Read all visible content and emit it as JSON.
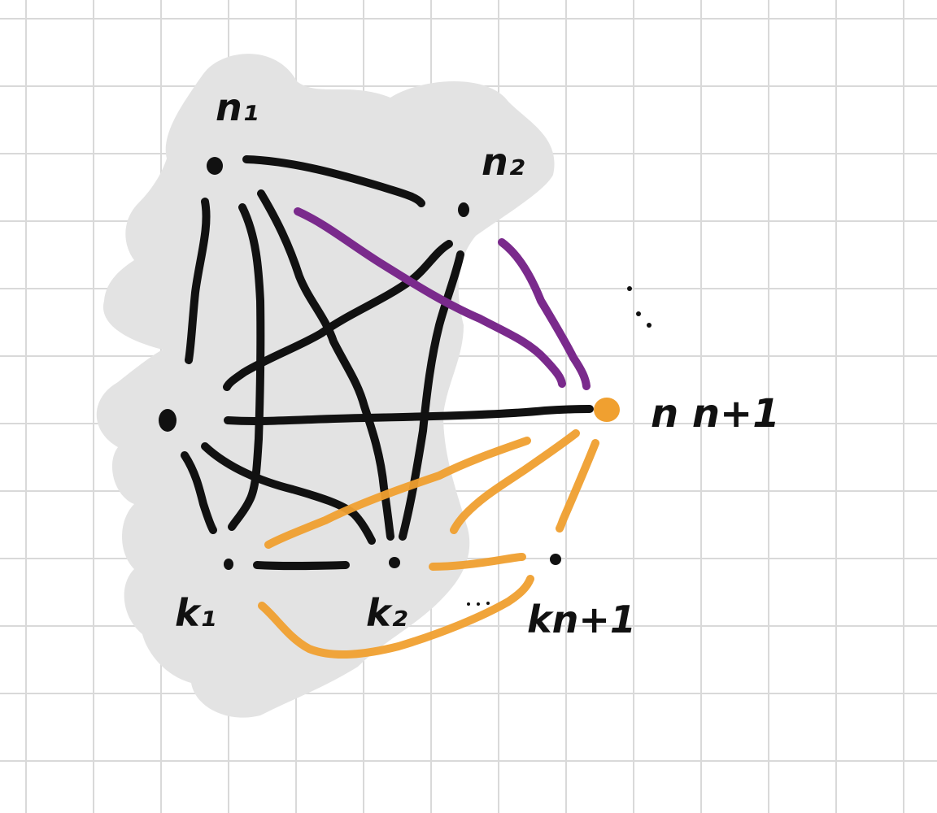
{
  "colors": {
    "background": "#ffffff",
    "grid": "#d9d9d9",
    "blob": "#e3e3e3",
    "ink": "#111111",
    "purple": "#7a2a8c",
    "orange": "#f0a030"
  },
  "labels": {
    "n1": "n₁",
    "n2": "n₂",
    "n_plus_1": "n n+1",
    "k1": "k₁",
    "k2": "k₂",
    "k_n_plus_1": "kn+1"
  },
  "vertices": [
    {
      "id": "n1",
      "kind": "black"
    },
    {
      "id": "n2",
      "kind": "black"
    },
    {
      "id": "left",
      "kind": "black"
    },
    {
      "id": "k1",
      "kind": "black"
    },
    {
      "id": "k2",
      "kind": "black"
    },
    {
      "id": "k_n_plus_1",
      "kind": "black"
    },
    {
      "id": "n_plus_1",
      "kind": "orange"
    }
  ],
  "edges": {
    "black": [
      [
        "n1",
        "n2"
      ],
      [
        "n1",
        "left"
      ],
      [
        "n1",
        "k1"
      ],
      [
        "n1",
        "k2"
      ],
      [
        "n2",
        "left"
      ],
      [
        "n2",
        "k2"
      ],
      [
        "left",
        "n_plus_1"
      ],
      [
        "left",
        "k1"
      ],
      [
        "left",
        "k2"
      ],
      [
        "k1",
        "k2"
      ]
    ],
    "purple": [
      [
        "n1",
        "n_plus_1"
      ],
      [
        "n2",
        "n_plus_1"
      ]
    ],
    "orange": [
      [
        "n_plus_1",
        "k1"
      ],
      [
        "n_plus_1",
        "k2"
      ],
      [
        "n_plus_1",
        "k_n_plus_1"
      ],
      [
        "k2",
        "k_n_plus_1"
      ],
      [
        "k1",
        "k_n_plus_1"
      ]
    ]
  }
}
